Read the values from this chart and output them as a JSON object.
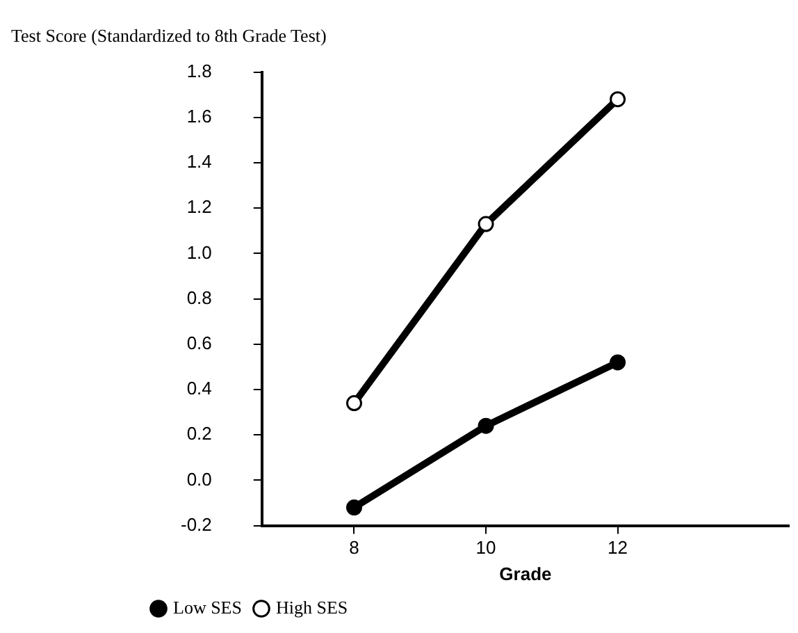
{
  "chart_data": {
    "type": "line",
    "ylabel": "Test Score (Standardized to 8th Grade Test)",
    "xlabel": "Grade",
    "series": [
      {
        "name": "Low SES",
        "color": "#000000",
        "x": [
          8,
          10,
          12
        ],
        "values": [
          -0.12,
          0.24,
          0.52
        ]
      },
      {
        "name": "High SES",
        "color": "#000000",
        "x": [
          8,
          10,
          12
        ],
        "values": [
          0.34,
          1.13,
          1.68
        ]
      }
    ],
    "xlim": [
      6.6,
      14.6
    ],
    "xticks": [
      8,
      10,
      12
    ],
    "ylim": [
      -0.2,
      1.8
    ],
    "yticks": [
      {
        "value": -0.2,
        "label": "-0.2"
      },
      {
        "value": 0,
        "label": "0.0"
      },
      {
        "value": 0.2,
        "label": "0.2"
      },
      {
        "value": 0.4,
        "label": "0.4"
      },
      {
        "value": 0.6,
        "label": "0.6"
      },
      {
        "value": 0.8,
        "label": "0.8"
      },
      {
        "value": 1,
        "label": "1.0"
      },
      {
        "value": 1.2,
        "label": "1.2"
      },
      {
        "value": 1.4,
        "label": "1.4"
      },
      {
        "value": 1.6,
        "label": "1.6"
      },
      {
        "value": 1.8,
        "label": "1.8"
      }
    ],
    "grid": false,
    "legend": "bottom left",
    "marker": "circle",
    "line_style": "solid"
  }
}
